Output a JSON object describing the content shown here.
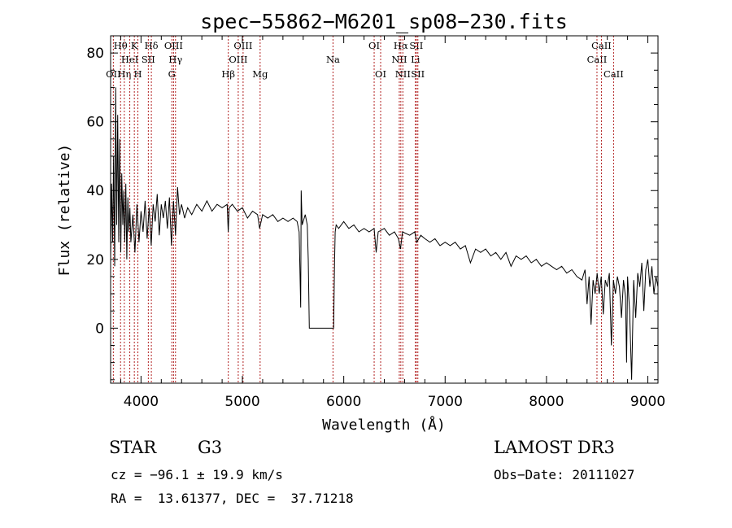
{
  "chart_data": {
    "type": "line",
    "title": "spec−55862−M6201_sp08−230.fits",
    "xlabel": "Wavelength (Å)",
    "ylabel": "Flux (relative)",
    "xlim": [
      3700,
      9100
    ],
    "ylim": [
      -16,
      85
    ],
    "xticks": [
      4000,
      5000,
      6000,
      7000,
      8000,
      9000
    ],
    "yticks": [
      0,
      20,
      40,
      60,
      80
    ],
    "series": [
      {
        "name": "flux",
        "points": [
          [
            3700,
            20
          ],
          [
            3710,
            42
          ],
          [
            3720,
            25
          ],
          [
            3730,
            50
          ],
          [
            3740,
            18
          ],
          [
            3750,
            70
          ],
          [
            3760,
            30
          ],
          [
            3770,
            62
          ],
          [
            3780,
            25
          ],
          [
            3790,
            55
          ],
          [
            3800,
            22
          ],
          [
            3810,
            45
          ],
          [
            3820,
            30
          ],
          [
            3830,
            40
          ],
          [
            3840,
            25
          ],
          [
            3850,
            42
          ],
          [
            3860,
            20
          ],
          [
            3870,
            38
          ],
          [
            3880,
            28
          ],
          [
            3890,
            35
          ],
          [
            3900,
            25
          ],
          [
            3920,
            33
          ],
          [
            3940,
            22
          ],
          [
            3960,
            36
          ],
          [
            3980,
            25
          ],
          [
            4000,
            34
          ],
          [
            4020,
            28
          ],
          [
            4040,
            37
          ],
          [
            4060,
            26
          ],
          [
            4080,
            35
          ],
          [
            4100,
            24
          ],
          [
            4120,
            36
          ],
          [
            4140,
            31
          ],
          [
            4160,
            39
          ],
          [
            4180,
            27
          ],
          [
            4200,
            36
          ],
          [
            4220,
            32
          ],
          [
            4240,
            37
          ],
          [
            4260,
            29
          ],
          [
            4280,
            38
          ],
          [
            4300,
            24
          ],
          [
            4320,
            37
          ],
          [
            4340,
            27
          ],
          [
            4360,
            41
          ],
          [
            4380,
            33
          ],
          [
            4400,
            36
          ],
          [
            4430,
            32
          ],
          [
            4460,
            35
          ],
          [
            4500,
            33
          ],
          [
            4550,
            36
          ],
          [
            4600,
            34
          ],
          [
            4650,
            37
          ],
          [
            4700,
            34
          ],
          [
            4750,
            36
          ],
          [
            4800,
            35
          ],
          [
            4850,
            36
          ],
          [
            4860,
            28
          ],
          [
            4870,
            35
          ],
          [
            4900,
            36
          ],
          [
            4950,
            34
          ],
          [
            5000,
            35
          ],
          [
            5050,
            32
          ],
          [
            5100,
            34
          ],
          [
            5150,
            33
          ],
          [
            5170,
            29
          ],
          [
            5200,
            33
          ],
          [
            5250,
            32
          ],
          [
            5300,
            33
          ],
          [
            5350,
            31
          ],
          [
            5400,
            32
          ],
          [
            5450,
            31
          ],
          [
            5500,
            32
          ],
          [
            5540,
            31
          ],
          [
            5560,
            28
          ],
          [
            5575,
            6
          ],
          [
            5580,
            40
          ],
          [
            5590,
            30
          ],
          [
            5620,
            33
          ],
          [
            5640,
            30
          ],
          [
            5650,
            20
          ],
          [
            5660,
            0
          ],
          [
            5900,
            0
          ],
          [
            5910,
            20
          ],
          [
            5915,
            28
          ],
          [
            5925,
            30
          ],
          [
            5950,
            29
          ],
          [
            6000,
            31
          ],
          [
            6050,
            29
          ],
          [
            6100,
            30
          ],
          [
            6150,
            28
          ],
          [
            6200,
            29
          ],
          [
            6250,
            28
          ],
          [
            6300,
            29
          ],
          [
            6320,
            22
          ],
          [
            6340,
            28
          ],
          [
            6400,
            29
          ],
          [
            6450,
            27
          ],
          [
            6500,
            28
          ],
          [
            6540,
            26
          ],
          [
            6560,
            23
          ],
          [
            6580,
            28
          ],
          [
            6650,
            27
          ],
          [
            6700,
            28
          ],
          [
            6720,
            25
          ],
          [
            6760,
            27
          ],
          [
            6800,
            26
          ],
          [
            6850,
            25
          ],
          [
            6900,
            26
          ],
          [
            6950,
            24
          ],
          [
            7000,
            25
          ],
          [
            7050,
            24
          ],
          [
            7100,
            25
          ],
          [
            7150,
            23
          ],
          [
            7200,
            24
          ],
          [
            7250,
            19
          ],
          [
            7300,
            23
          ],
          [
            7350,
            22
          ],
          [
            7400,
            23
          ],
          [
            7450,
            21
          ],
          [
            7500,
            22
          ],
          [
            7550,
            20
          ],
          [
            7600,
            22
          ],
          [
            7650,
            18
          ],
          [
            7700,
            21
          ],
          [
            7750,
            20
          ],
          [
            7800,
            21
          ],
          [
            7850,
            19
          ],
          [
            7900,
            20
          ],
          [
            7950,
            18
          ],
          [
            8000,
            19
          ],
          [
            8050,
            18
          ],
          [
            8100,
            17
          ],
          [
            8150,
            18
          ],
          [
            8200,
            16
          ],
          [
            8250,
            17
          ],
          [
            8300,
            15
          ],
          [
            8350,
            14
          ],
          [
            8380,
            17
          ],
          [
            8400,
            7
          ],
          [
            8420,
            15
          ],
          [
            8440,
            1
          ],
          [
            8460,
            14
          ],
          [
            8480,
            10
          ],
          [
            8500,
            16
          ],
          [
            8520,
            10
          ],
          [
            8540,
            15
          ],
          [
            8560,
            4
          ],
          [
            8580,
            14
          ],
          [
            8600,
            12
          ],
          [
            8620,
            16
          ],
          [
            8640,
            -5
          ],
          [
            8660,
            14
          ],
          [
            8680,
            10
          ],
          [
            8700,
            15
          ],
          [
            8720,
            12
          ],
          [
            8740,
            3
          ],
          [
            8760,
            14
          ],
          [
            8780,
            9
          ],
          [
            8790,
            -10
          ],
          [
            8800,
            15
          ],
          [
            8820,
            5
          ],
          [
            8840,
            -15
          ],
          [
            8860,
            14
          ],
          [
            8880,
            3
          ],
          [
            8900,
            16
          ],
          [
            8920,
            12
          ],
          [
            8940,
            19
          ],
          [
            8960,
            5
          ],
          [
            8980,
            17
          ],
          [
            9000,
            20
          ],
          [
            9020,
            12
          ],
          [
            9040,
            18
          ],
          [
            9060,
            10
          ],
          [
            9080,
            15
          ],
          [
            9100,
            12
          ]
        ]
      }
    ],
    "lines": [
      {
        "label": "OII",
        "x": 3727,
        "row": 2
      },
      {
        "label": "Hθ",
        "x": 3798,
        "row": 0
      },
      {
        "label": "Hη",
        "x": 3835,
        "row": 2
      },
      {
        "label": "HeI",
        "x": 3889,
        "row": 1
      },
      {
        "label": "K",
        "x": 3934,
        "row": 0
      },
      {
        "label": "H",
        "x": 3969,
        "row": 2
      },
      {
        "label": "SII",
        "x": 4072,
        "row": 1
      },
      {
        "label": "Hδ",
        "x": 4102,
        "row": 0
      },
      {
        "label": "G",
        "x": 4304,
        "row": 2
      },
      {
        "label": "OIII",
        "x": 4321,
        "row": 0
      },
      {
        "label": "Hγ",
        "x": 4340,
        "row": 1
      },
      {
        "label": "Hβ",
        "x": 4861,
        "row": 2
      },
      {
        "label": "OIII",
        "x": 4959,
        "row": 1
      },
      {
        "label": "OIII",
        "x": 5007,
        "row": 0
      },
      {
        "label": "Mg",
        "x": 5175,
        "row": 2
      },
      {
        "label": "Na",
        "x": 5894,
        "row": 1
      },
      {
        "label": "OI",
        "x": 6300,
        "row": 0
      },
      {
        "label": "OI",
        "x": 6364,
        "row": 2
      },
      {
        "label": "NII",
        "x": 6548,
        "row": 1
      },
      {
        "label": "Hα",
        "x": 6563,
        "row": 0
      },
      {
        "label": "NII",
        "x": 6583,
        "row": 2
      },
      {
        "label": "Li",
        "x": 6707,
        "row": 1
      },
      {
        "label": "SII",
        "x": 6716,
        "row": 0
      },
      {
        "label": "SII",
        "x": 6731,
        "row": 2
      },
      {
        "label": "CaII",
        "x": 8498,
        "row": 1
      },
      {
        "label": "CaII",
        "x": 8542,
        "row": 0
      },
      {
        "label": "CaII",
        "x": 8662,
        "row": 2
      }
    ]
  },
  "info": {
    "class": "STAR",
    "subclass": "G3",
    "survey": "LAMOST DR3",
    "cz": "cz = −96.1 ± 19.9 km/s",
    "obs_date": "Obs−Date: 20111027",
    "radec": "RA =  13.61377, DEC =  37.71218"
  }
}
